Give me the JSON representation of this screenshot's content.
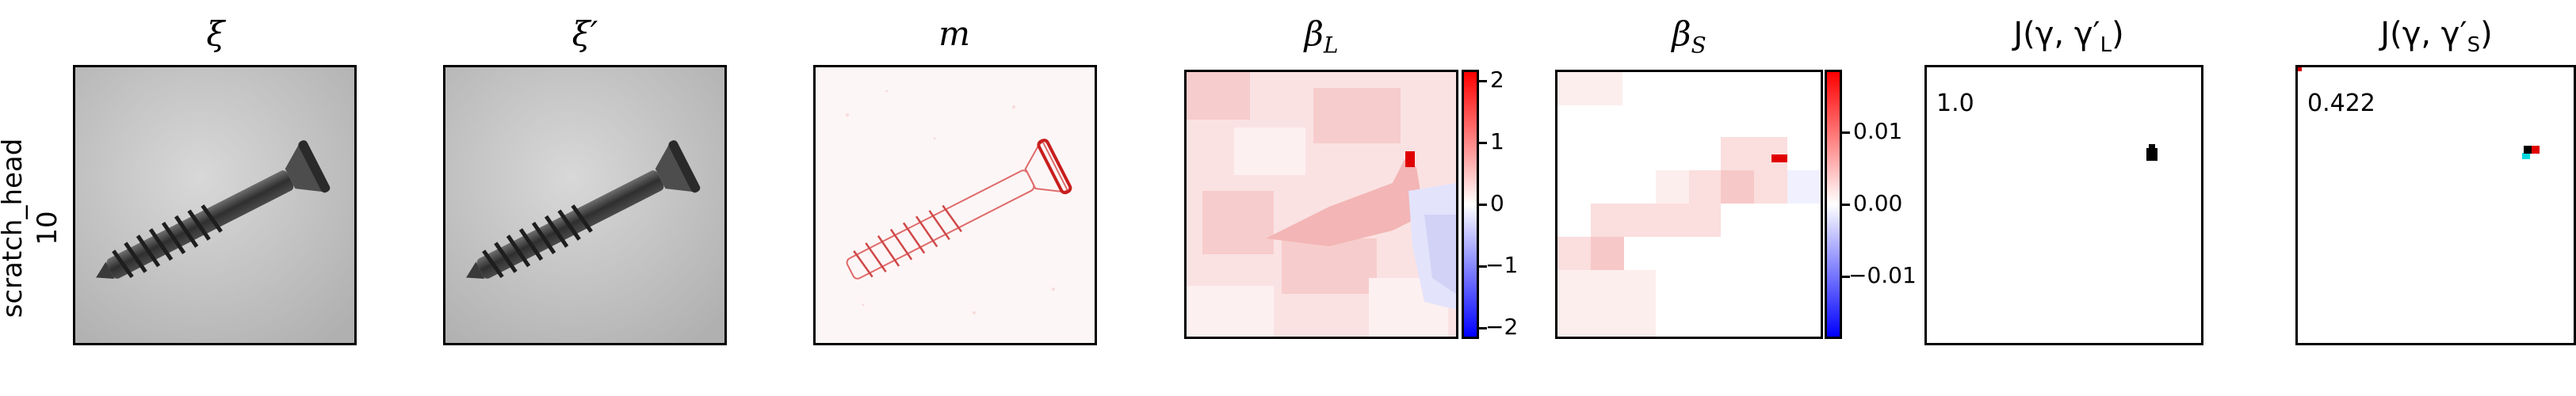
{
  "row_label": {
    "line1": "scratch_head",
    "line2": "10"
  },
  "panels": [
    {
      "title": "ξ"
    },
    {
      "title": "ξ′"
    },
    {
      "title": "m"
    },
    {
      "title": "β_L",
      "title_main": "β",
      "title_sub": "L"
    },
    {
      "title": "β_S",
      "title_main": "β",
      "title_sub": "S"
    },
    {
      "title": "J(γ, γ′_L)",
      "title_pre": "J(γ, γ′",
      "title_sub": "L",
      "title_post": ")"
    },
    {
      "title": "J(γ, γ′_S)",
      "title_pre": "J(γ, γ′",
      "title_sub": "S",
      "title_post": ")"
    }
  ],
  "colorbars": {
    "beta_L": {
      "ticks": [
        "2",
        "1",
        "0",
        "−1",
        "−2"
      ],
      "range": [
        -2.2,
        2.2
      ],
      "colors": {
        "low": "#0000ff",
        "mid": "#ffffff",
        "high": "#ff0000"
      }
    },
    "beta_S": {
      "ticks": [
        "0.01",
        "0.00",
        "−0.01"
      ],
      "range": [
        -0.018,
        0.018
      ],
      "colors": {
        "low": "#0000ff",
        "mid": "#ffffff",
        "high": "#ff0000"
      }
    }
  },
  "j_values": {
    "L": "1.0",
    "S": "0.422"
  }
}
